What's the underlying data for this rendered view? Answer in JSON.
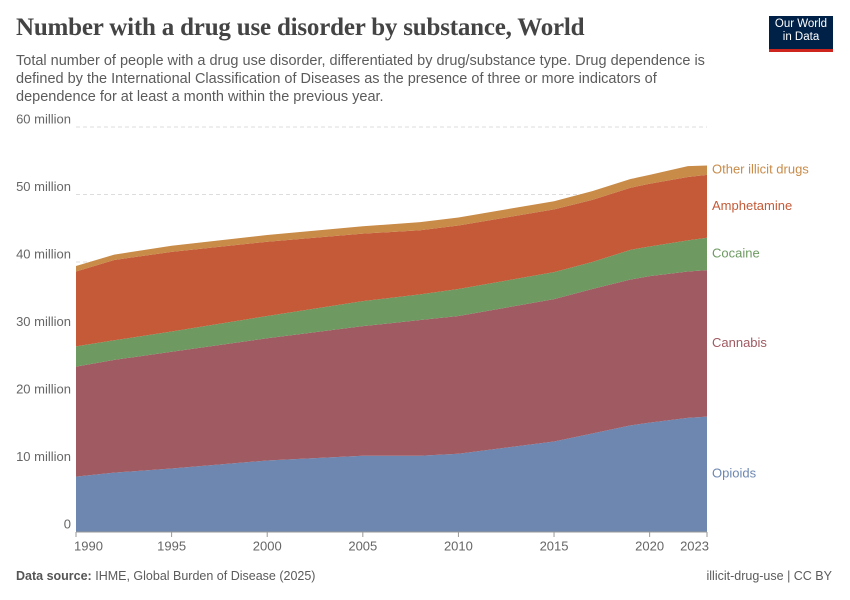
{
  "header": {
    "logo": "Our World in Data"
  },
  "footer": {
    "source_label": "Data source:",
    "source": "IHME, Global Burden of Disease (2025)",
    "license": "illicit-drug-use | CC BY"
  },
  "chart_data": {
    "type": "area",
    "stacked": true,
    "title": "Number with a drug use disorder by substance, World",
    "subtitle": "Total number of people with a drug use disorder, differentiated by drug/substance type. Drug dependence is defined by the International Classification of Diseases as the presence of three or more indicators of dependence for at least a month within the previous year.",
    "x": [
      1990,
      1992,
      1995,
      2000,
      2005,
      2008,
      2010,
      2015,
      2017,
      2019,
      2020,
      2022,
      2023
    ],
    "xlim": [
      1990,
      2023
    ],
    "xticks": [
      1990,
      1995,
      2000,
      2005,
      2010,
      2015,
      2020,
      2023
    ],
    "ylim": [
      0,
      60000000
    ],
    "yticks": [
      0,
      {
        "value": 10000000,
        "label": "10 million"
      },
      {
        "value": 20000000,
        "label": "20 million"
      },
      {
        "value": 30000000,
        "label": "30 million"
      },
      {
        "value": 40000000,
        "label": "40 million"
      },
      {
        "value": 50000000,
        "label": "50 million"
      },
      {
        "value": 60000000,
        "label": "60 million"
      }
    ],
    "grid": true,
    "series": [
      {
        "name": "Opioids",
        "color": "#6d87b0",
        "values": [
          8200000,
          8800000,
          9400000,
          10600000,
          11300000,
          11300000,
          11600000,
          13400000,
          14600000,
          15800000,
          16200000,
          16900000,
          17100000
        ]
      },
      {
        "name": "Cannabis",
        "color": "#a05a62",
        "values": [
          16300000,
          16700000,
          17300000,
          18100000,
          19200000,
          20100000,
          20400000,
          21100000,
          21400000,
          21600000,
          21700000,
          21700000,
          21700000
        ]
      },
      {
        "name": "Cocaine",
        "color": "#6e9a62",
        "values": [
          3000000,
          2900000,
          3000000,
          3300000,
          3700000,
          3800000,
          4000000,
          4000000,
          4000000,
          4400000,
          4400000,
          4600000,
          4800000
        ]
      },
      {
        "name": "Amphetamine",
        "color": "#c45a38",
        "values": [
          11100000,
          11900000,
          11800000,
          11000000,
          10000000,
          9500000,
          9400000,
          9300000,
          9200000,
          9200000,
          9300000,
          9400000,
          9300000
        ]
      },
      {
        "name": "Other illicit drugs",
        "color": "#c98b48",
        "values": [
          800000,
          800000,
          900000,
          1000000,
          1100000,
          1200000,
          1200000,
          1200000,
          1300000,
          1300000,
          1300000,
          1600000,
          1400000
        ]
      }
    ]
  }
}
